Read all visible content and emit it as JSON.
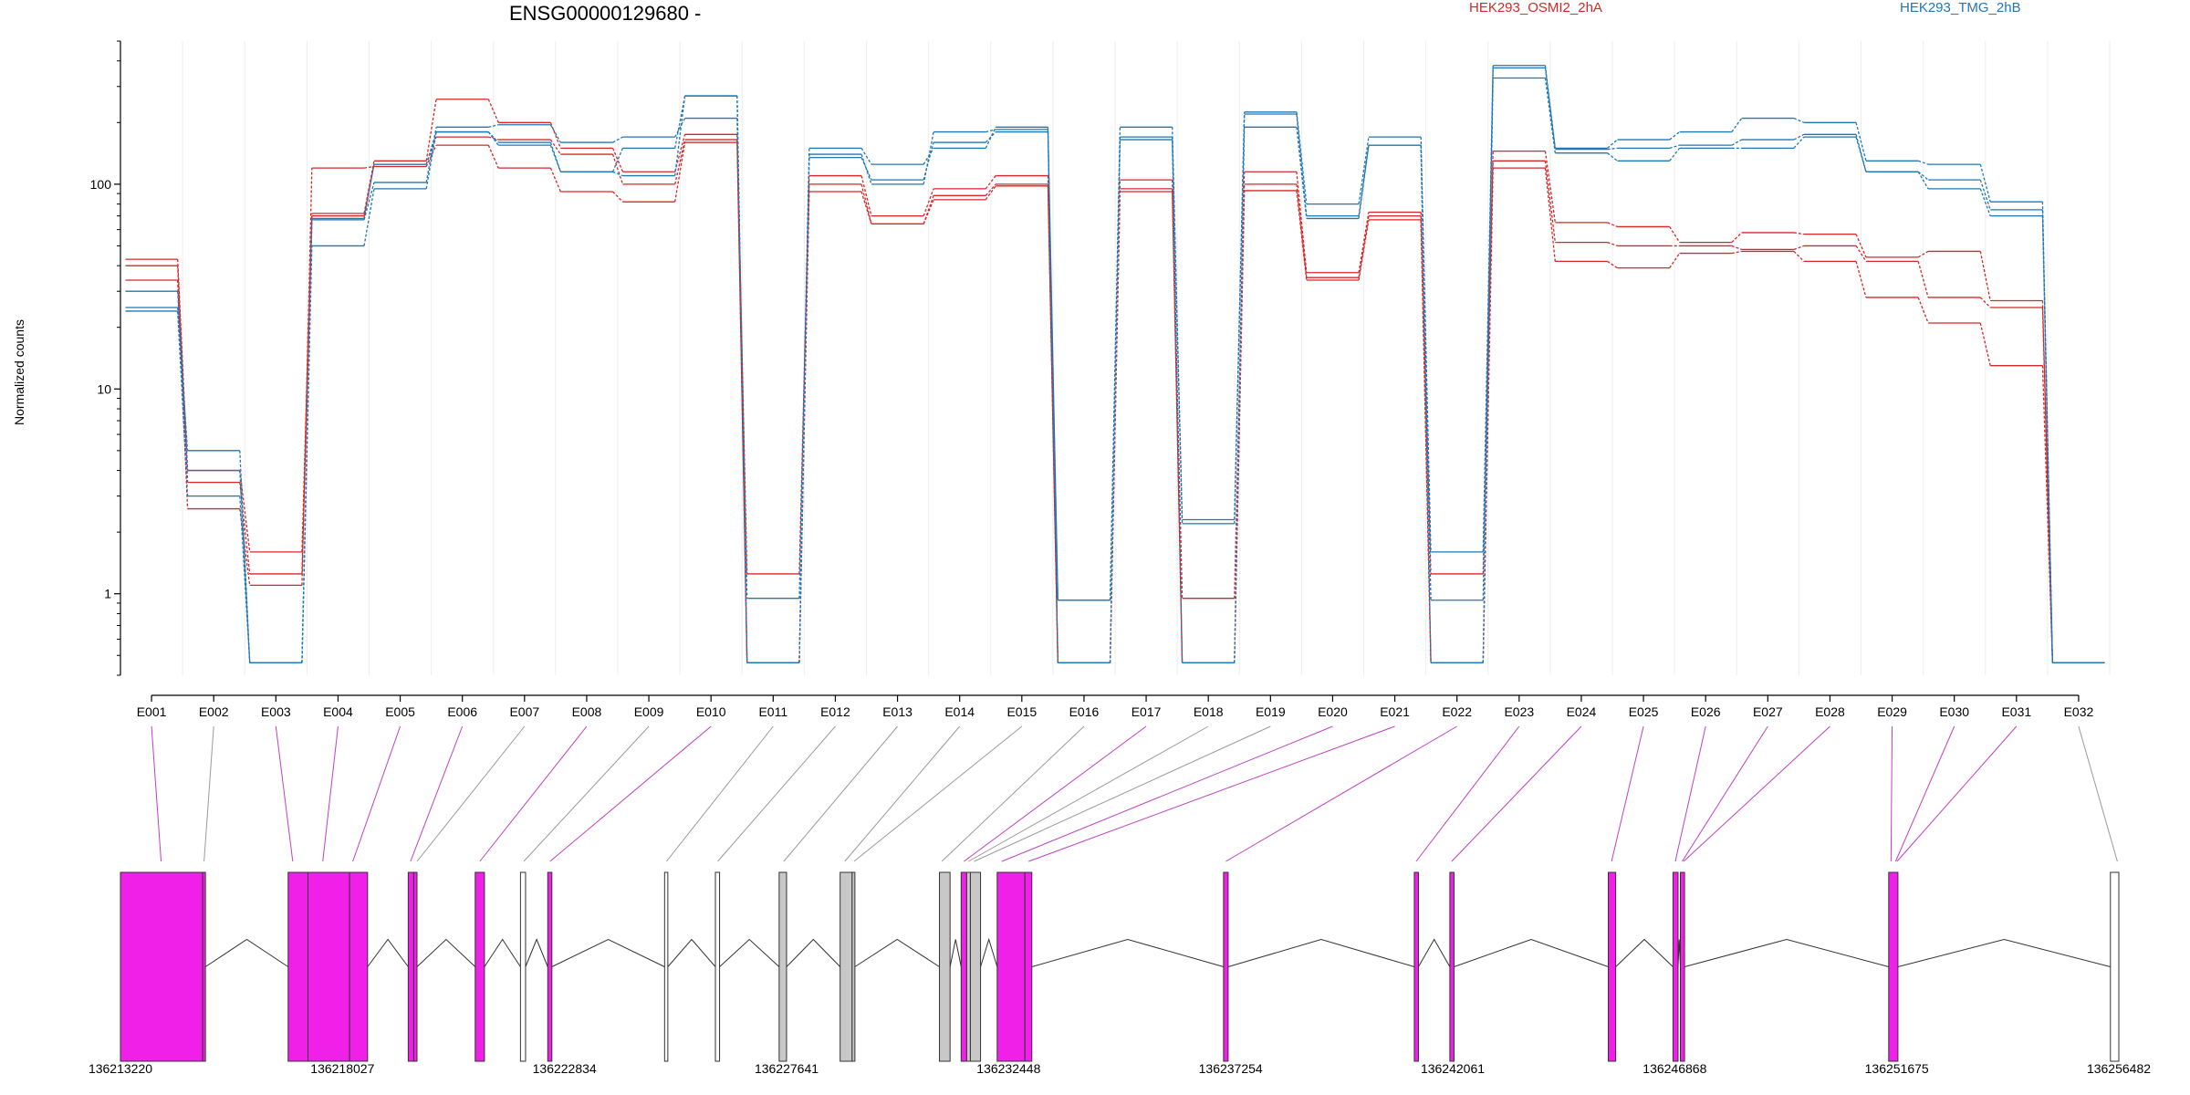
{
  "chart_data": {
    "type": "line",
    "title": "ENSG00000129680 -",
    "ylabel": "Normalized counts",
    "yscale": "log",
    "ylim": [
      0.4,
      500
    ],
    "yticks": [
      1,
      10,
      100
    ],
    "yticklabels": [
      "1",
      "10",
      "100"
    ],
    "categories": [
      "E001",
      "E002",
      "E003",
      "E004",
      "E005",
      "E006",
      "E007",
      "E008",
      "E009",
      "E010",
      "E011",
      "E012",
      "E013",
      "E014",
      "E015",
      "E016",
      "E017",
      "E018",
      "E019",
      "E020",
      "E021",
      "E022",
      "E023",
      "E024",
      "E025",
      "E026",
      "E027",
      "E028",
      "E029",
      "E030",
      "E031",
      "E032"
    ],
    "groups": [
      {
        "name": "HEK293_OSMI2_2hA",
        "color": "#d62728"
      },
      {
        "name": "HEK293_TMG_2hB",
        "color": "#1f77b4"
      }
    ],
    "series": [
      {
        "group": 0,
        "values": [
          43,
          4.0,
          1.6,
          72,
          130,
          260,
          200,
          150,
          115,
          175,
          1.25,
          110,
          70,
          95,
          110,
          0.46,
          105,
          0.95,
          115,
          37,
          73,
          1.25,
          145,
          65,
          62,
          52,
          58,
          57,
          44,
          47,
          27,
          0.46
        ]
      },
      {
        "group": 0,
        "values": [
          40,
          3.5,
          1.25,
          70,
          125,
          170,
          165,
          140,
          100,
          165,
          0.46,
          100,
          64,
          88,
          100,
          0.46,
          95,
          0.46,
          100,
          35,
          70,
          0.46,
          130,
          52,
          50,
          50,
          48,
          50,
          42,
          28,
          25,
          0.46
        ]
      },
      {
        "group": 0,
        "values": [
          34,
          2.6,
          1.1,
          120,
          122,
          155,
          120,
          92,
          82,
          160,
          0.46,
          92,
          64,
          84,
          98,
          0.46,
          92,
          0.46,
          93,
          34,
          67,
          0.46,
          120,
          42,
          39,
          46,
          47,
          42,
          28,
          21,
          13,
          0.46
        ]
      },
      {
        "group": 1,
        "values": [
          30,
          4.0,
          0.46,
          68,
          125,
          180,
          160,
          115,
          110,
          270,
          0.46,
          140,
          100,
          180,
          185,
          0.93,
          190,
          2.3,
          225,
          80,
          170,
          1.6,
          380,
          150,
          165,
          180,
          210,
          200,
          130,
          125,
          82,
          0.46
        ]
      },
      {
        "group": 1,
        "values": [
          25,
          5.0,
          0.46,
          67,
          102,
          190,
          195,
          160,
          170,
          210,
          0.95,
          150,
          125,
          150,
          190,
          0.93,
          170,
          2.2,
          220,
          70,
          155,
          0.93,
          370,
          148,
          150,
          155,
          165,
          175,
          115,
          105,
          75,
          0.46
        ]
      },
      {
        "group": 1,
        "values": [
          24,
          3.0,
          0.46,
          50,
          95,
          180,
          155,
          115,
          150,
          270,
          0.46,
          135,
          105,
          160,
          180,
          0.46,
          165,
          0.46,
          190,
          68,
          155,
          0.46,
          330,
          142,
          130,
          150,
          150,
          170,
          115,
          95,
          70,
          0.46
        ]
      }
    ]
  },
  "gene_model": {
    "coordinate_labels": [
      "136213220",
      "136218027",
      "136222834",
      "136227641",
      "136232448",
      "136237254",
      "136242061",
      "136246868",
      "136251675",
      "136256482"
    ],
    "colors": {
      "exon_sig": "#f020e8",
      "exon_gray": "#c8c8c8",
      "exon_open": "#ffffff",
      "connector_sig": "#c040c0",
      "connector_plain": "#9a9a9a"
    },
    "exons": [
      {
        "id": "E001",
        "start": 136213220,
        "end": 136215000,
        "style": "sig"
      },
      {
        "id": "E002",
        "start": 136215000,
        "end": 136215060,
        "style": "sig"
      },
      {
        "id": "E003",
        "start": 136216850,
        "end": 136217280,
        "style": "sig"
      },
      {
        "id": "E004",
        "start": 136217280,
        "end": 136218180,
        "style": "sig"
      },
      {
        "id": "E005",
        "start": 136218180,
        "end": 136218570,
        "style": "sig"
      },
      {
        "id": "E006",
        "start": 136219450,
        "end": 136219570,
        "style": "sig"
      },
      {
        "id": "E007",
        "start": 136219570,
        "end": 136219640,
        "style": "sig"
      },
      {
        "id": "E008",
        "start": 136220900,
        "end": 136221100,
        "style": "sig"
      },
      {
        "id": "E009",
        "start": 136221880,
        "end": 136221990,
        "style": "open"
      },
      {
        "id": "E010",
        "start": 136222470,
        "end": 136222560,
        "style": "sig"
      },
      {
        "id": "E011",
        "start": 136225000,
        "end": 136225070,
        "style": "open"
      },
      {
        "id": "E012",
        "start": 136226100,
        "end": 136226190,
        "style": "open"
      },
      {
        "id": "E013",
        "start": 136227480,
        "end": 136227640,
        "style": "gray"
      },
      {
        "id": "E014",
        "start": 136228800,
        "end": 136229060,
        "style": "gray"
      },
      {
        "id": "E015",
        "start": 136229060,
        "end": 136229120,
        "style": "gray"
      },
      {
        "id": "E016",
        "start": 136230950,
        "end": 136231180,
        "style": "gray"
      },
      {
        "id": "E017",
        "start": 136231420,
        "end": 136231540,
        "style": "sig"
      },
      {
        "id": "E018",
        "start": 136231540,
        "end": 136231620,
        "style": "gray"
      },
      {
        "id": "E019",
        "start": 136231620,
        "end": 136231840,
        "style": "gray"
      },
      {
        "id": "E020",
        "start": 136232200,
        "end": 136232800,
        "style": "sig"
      },
      {
        "id": "E021",
        "start": 136232800,
        "end": 136232950,
        "style": "sig"
      },
      {
        "id": "E022",
        "start": 136237100,
        "end": 136237200,
        "style": "sig"
      },
      {
        "id": "E023",
        "start": 136241230,
        "end": 136241320,
        "style": "sig"
      },
      {
        "id": "E024",
        "start": 136242000,
        "end": 136242090,
        "style": "sig"
      },
      {
        "id": "E025",
        "start": 136245430,
        "end": 136245590,
        "style": "sig"
      },
      {
        "id": "E026",
        "start": 136246830,
        "end": 136246940,
        "style": "sig"
      },
      {
        "id": "E027",
        "start": 136246990,
        "end": 136247080,
        "style": "sig"
      },
      {
        "id": "E028",
        "start": 136251500,
        "end": 136251700,
        "style": "sig"
      },
      {
        "id": "E032",
        "start": 136256300,
        "end": 136256482,
        "style": "open"
      }
    ],
    "connectors": [
      {
        "exon": "E001",
        "target": 136214100,
        "style": "sig"
      },
      {
        "exon": "E002",
        "target": 136215030,
        "style": "plain"
      },
      {
        "exon": "E003",
        "target": 136216950,
        "style": "sig"
      },
      {
        "exon": "E004",
        "target": 136217600,
        "style": "sig"
      },
      {
        "exon": "E005",
        "target": 136218250,
        "style": "sig"
      },
      {
        "exon": "E006",
        "target": 136219500,
        "style": "sig"
      },
      {
        "exon": "E007",
        "target": 136219640,
        "style": "plain"
      },
      {
        "exon": "E008",
        "target": 136221000,
        "style": "sig"
      },
      {
        "exon": "E009",
        "target": 136221950,
        "style": "plain"
      },
      {
        "exon": "E010",
        "target": 136222520,
        "style": "sig"
      },
      {
        "exon": "E011",
        "target": 136225040,
        "style": "plain"
      },
      {
        "exon": "E012",
        "target": 136226150,
        "style": "plain"
      },
      {
        "exon": "E013",
        "target": 136227580,
        "style": "plain"
      },
      {
        "exon": "E014",
        "target": 136228900,
        "style": "plain"
      },
      {
        "exon": "E015",
        "target": 136229100,
        "style": "plain"
      },
      {
        "exon": "E016",
        "target": 136231000,
        "style": "plain"
      },
      {
        "exon": "E017",
        "target": 136231480,
        "style": "sig"
      },
      {
        "exon": "E018",
        "target": 136231580,
        "style": "plain"
      },
      {
        "exon": "E019",
        "target": 136231700,
        "style": "plain"
      },
      {
        "exon": "E020",
        "target": 136232300,
        "style": "sig"
      },
      {
        "exon": "E021",
        "target": 136232880,
        "style": "sig"
      },
      {
        "exon": "E022",
        "target": 136237150,
        "style": "sig"
      },
      {
        "exon": "E023",
        "target": 136241270,
        "style": "sig"
      },
      {
        "exon": "E024",
        "target": 136242040,
        "style": "sig"
      },
      {
        "exon": "E025",
        "target": 136245500,
        "style": "sig"
      },
      {
        "exon": "E026",
        "target": 136246880,
        "style": "sig"
      },
      {
        "exon": "E027",
        "target": 136247030,
        "style": "sig"
      },
      {
        "exon": "E028",
        "target": 136247060,
        "style": "sig"
      },
      {
        "exon": "E029",
        "target": 136251550,
        "style": "sig"
      },
      {
        "exon": "E030",
        "target": 136251650,
        "style": "sig"
      },
      {
        "exon": "E031",
        "target": 136251680,
        "style": "sig"
      },
      {
        "exon": "E032",
        "target": 136256450,
        "style": "plain"
      }
    ]
  }
}
